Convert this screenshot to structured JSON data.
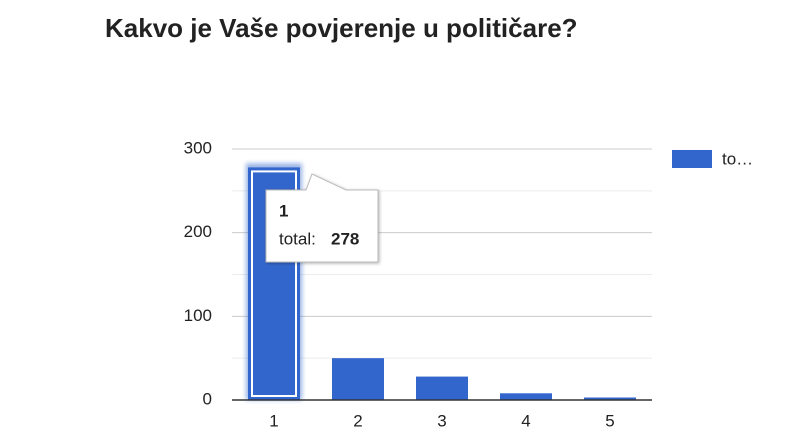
{
  "chart_data": {
    "type": "bar",
    "title": "Kakvo je Vaše povjerenje u političare?",
    "categories": [
      "1",
      "2",
      "3",
      "4",
      "5"
    ],
    "series": [
      {
        "name": "to…",
        "color": "#3366cc",
        "values": [
          278,
          50,
          28,
          8,
          3
        ]
      }
    ],
    "ylim": [
      0,
      300
    ],
    "yticks": [
      0,
      100,
      200,
      300
    ],
    "minor_yticks": [
      50,
      150,
      250
    ],
    "grid": true,
    "legend": "right",
    "tooltip": {
      "label": "total:"
    }
  }
}
